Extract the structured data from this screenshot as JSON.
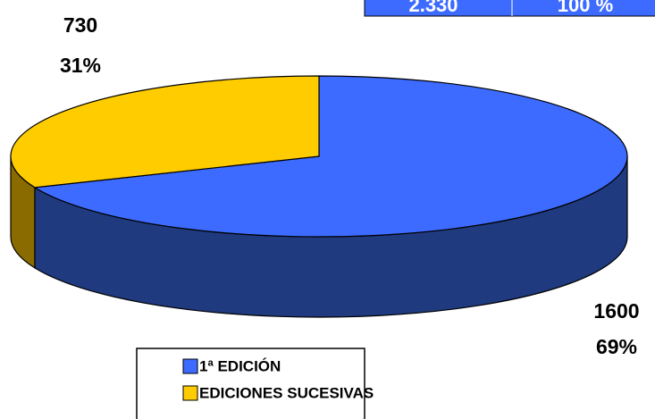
{
  "chart_data": {
    "type": "pie",
    "categories": [
      "1ª EDICIÓN",
      "EDICIONES SUCESIVAS"
    ],
    "values": [
      1600,
      730
    ],
    "percents": [
      69,
      31
    ],
    "percent_labels": [
      "69%",
      "31%"
    ],
    "colors": [
      "#3d6bff",
      "#ffcc00"
    ],
    "side_colors": [
      "#1f3a7e",
      "#8a6b00"
    ],
    "total_row": [
      "2.330",
      "100 %"
    ]
  }
}
